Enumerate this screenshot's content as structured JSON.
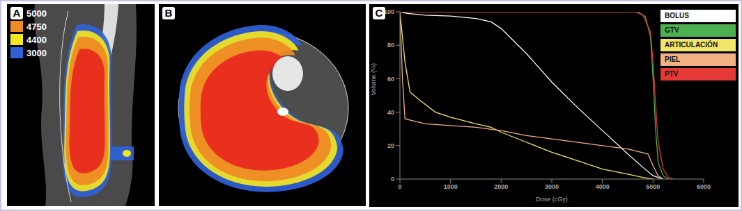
{
  "panels": [
    "A",
    "B",
    "C"
  ],
  "isodose_legend": {
    "values": [
      5000,
      4750,
      4400,
      3000
    ],
    "colors": [
      "#e8281e",
      "#f08a24",
      "#f3e520",
      "#2f62d8"
    ]
  },
  "chart_data": {
    "type": "line",
    "x_label": "Dose (cGy)",
    "y_label": "Volume (%)",
    "xlim": [
      0,
      6000
    ],
    "xticks": [
      0,
      1000,
      2000,
      3000,
      4000,
      5000,
      6000
    ],
    "ylim": [
      0,
      100
    ],
    "yticks": [
      0,
      20,
      40,
      60,
      80,
      100
    ],
    "grid": false,
    "legend": "top right",
    "series": [
      {
        "name": "BOLUS",
        "color": "#ffffff",
        "x": [
          0,
          150,
          500,
          1000,
          1500,
          1800,
          2000,
          2500,
          3000,
          3500,
          4000,
          4500,
          4800,
          5000,
          5200
        ],
        "values": [
          100,
          99,
          98,
          97.5,
          96,
          94,
          90,
          75,
          58,
          43,
          29,
          15,
          7,
          2,
          0
        ]
      },
      {
        "name": "GTV",
        "color": "#4caf50",
        "x": [
          0,
          4700,
          4850,
          4950,
          5000,
          5050,
          5100,
          5200,
          5300
        ],
        "values": [
          100,
          100,
          97,
          85,
          60,
          30,
          10,
          2,
          0
        ]
      },
      {
        "name": "ARTICULACIÓN",
        "color": "#f3e56a",
        "x": [
          0,
          100,
          200,
          400,
          700,
          1000,
          1500,
          1800,
          2000,
          2500,
          3000,
          3500,
          4000,
          4500,
          4800,
          5000
        ],
        "values": [
          100,
          70,
          52,
          47,
          40,
          37,
          33,
          31,
          28,
          22,
          16,
          11,
          6,
          3,
          1,
          0
        ]
      },
      {
        "name": "PIEL",
        "color": "#f4b183",
        "x": [
          0,
          50,
          100,
          500,
          1500,
          2000,
          2500,
          3000,
          3500,
          4000,
          4500,
          4900,
          5000,
          5100,
          5200
        ],
        "values": [
          100,
          60,
          36,
          33,
          31,
          29,
          26,
          24,
          22,
          20,
          18,
          15,
          8,
          2,
          0
        ]
      },
      {
        "name": "PTV",
        "color": "#e53935",
        "x": [
          0,
          4650,
          4800,
          4950,
          5000,
          5050,
          5100,
          5200,
          5300,
          5400
        ],
        "values": [
          100,
          100,
          98,
          88,
          70,
          45,
          22,
          6,
          1,
          0
        ]
      }
    ]
  }
}
